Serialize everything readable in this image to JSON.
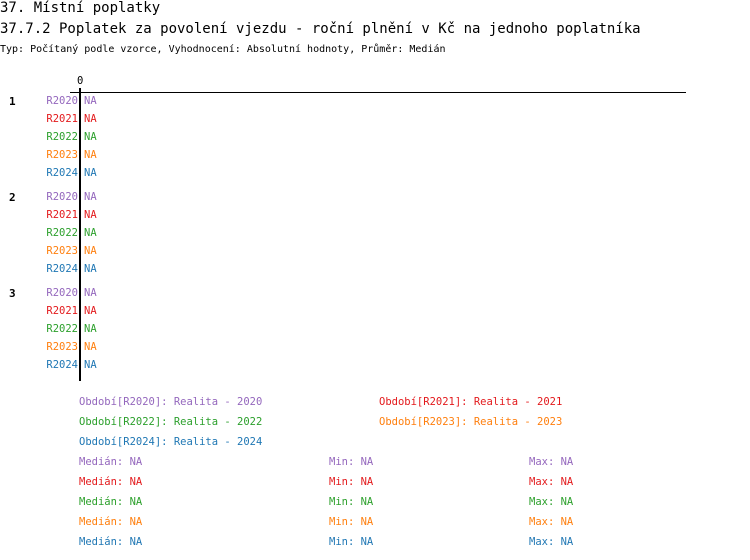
{
  "header": {
    "section_title": "37. Místní poplatky",
    "chart_title": "37.7.2 Poplatek za povolení vjezdu  - roční plnění v Kč na jednoho poplatníka",
    "subtitle": "Typ: Počítaný podle vzorce, Vyhodnocení: Absolutní hodnoty, Průměr: Medián"
  },
  "chart_data": {
    "type": "bar",
    "orientation": "horizontal",
    "title": "37.7.2 Poplatek za povolení vjezdu  - roční plnění v Kč na jednoho poplatníka",
    "x_ticks": [
      "0"
    ],
    "groups": [
      "1",
      "2",
      "3"
    ],
    "series": [
      {
        "name": "R2020",
        "color": "#9467bd",
        "values": [
          "NA",
          "NA",
          "NA"
        ]
      },
      {
        "name": "R2021",
        "color": "#e31a1c",
        "values": [
          "NA",
          "NA",
          "NA"
        ]
      },
      {
        "name": "R2022",
        "color": "#2ca02c",
        "values": [
          "NA",
          "NA",
          "NA"
        ]
      },
      {
        "name": "R2023",
        "color": "#ff7f0e",
        "values": [
          "NA",
          "NA",
          "NA"
        ]
      },
      {
        "name": "R2024",
        "color": "#1f77b4",
        "values": [
          "NA",
          "NA",
          "NA"
        ]
      }
    ],
    "legend": [
      "Období[R2020]: Realita - 2020",
      "Období[R2021]: Realita - 2021",
      "Období[R2022]: Realita - 2022",
      "Období[R2023]: Realita - 2023",
      "Období[R2024]: Realita - 2024"
    ],
    "stats": [
      {
        "median": "Medián: NA",
        "min": "Min: NA",
        "max": "Max: NA"
      },
      {
        "median": "Medián: NA",
        "min": "Min: NA",
        "max": "Max: NA"
      },
      {
        "median": "Medián: NA",
        "min": "Min: NA",
        "max": "Max: NA"
      },
      {
        "median": "Medián: NA",
        "min": "Min: NA",
        "max": "Max: NA"
      },
      {
        "median": "Medián: NA",
        "min": "Min: NA",
        "max": "Max: NA"
      }
    ]
  }
}
